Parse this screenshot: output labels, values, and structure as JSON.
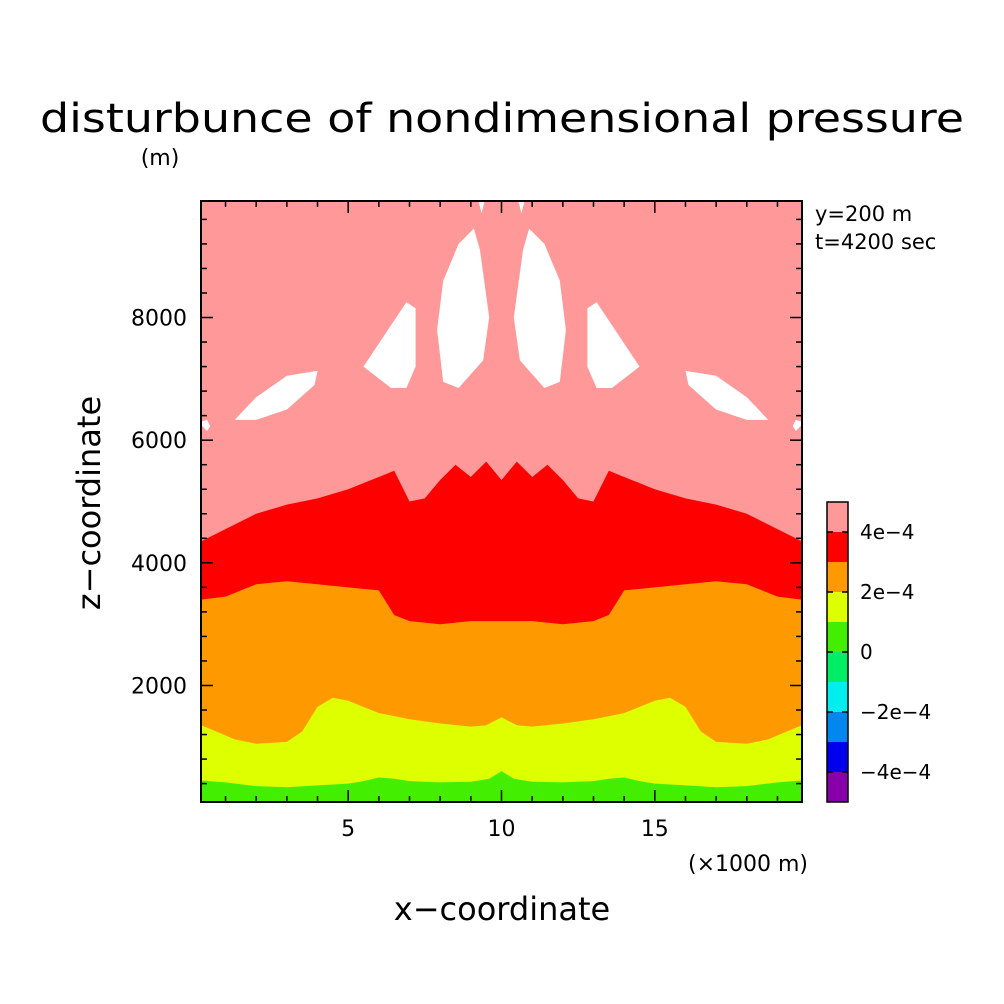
{
  "chart_data": {
    "type": "contour",
    "title": "disturbunce of nondimensional pressure",
    "ylabel": "z−coordinate",
    "yunit": "(m)",
    "xlabel": "x−coordinate",
    "xunit": "(×1000 m)",
    "info": [
      "y=200 m",
      "t=4200 sec"
    ],
    "xlim": [
      0.2,
      19.8
    ],
    "ylim": [
      100,
      9900
    ],
    "xticks": [
      5,
      10,
      15
    ],
    "yticks": [
      2000,
      4000,
      6000,
      8000
    ],
    "colorbar": {
      "tick_labels": [
        "4e−4",
        "2e−4",
        "0",
        "−2e−4",
        "−4e−4"
      ],
      "levels_top_to_bottom": [
        {
          "color": "#ff9999"
        },
        {
          "color": "#ff0000"
        },
        {
          "color": "#ff9900"
        },
        {
          "color": "#ddff00"
        },
        {
          "color": "#44ee00"
        },
        {
          "color": "#00ee66"
        },
        {
          "color": "#00eeee"
        },
        {
          "color": "#0088ee"
        },
        {
          "color": "#0000ee"
        },
        {
          "color": "#8800aa"
        }
      ]
    },
    "boundaries": {
      "green_top": [
        [
          0.2,
          450
        ],
        [
          1.0,
          420
        ],
        [
          2.0,
          360
        ],
        [
          3.0,
          340
        ],
        [
          4.0,
          370
        ],
        [
          5.0,
          400
        ],
        [
          5.5,
          440
        ],
        [
          6.0,
          500
        ],
        [
          6.5,
          480
        ],
        [
          7.0,
          440
        ],
        [
          8.0,
          420
        ],
        [
          9.0,
          430
        ],
        [
          9.6,
          480
        ],
        [
          10.0,
          600
        ],
        [
          10.4,
          480
        ],
        [
          11.0,
          430
        ],
        [
          12.0,
          420
        ],
        [
          13.0,
          440
        ],
        [
          13.5,
          480
        ],
        [
          14.0,
          500
        ],
        [
          14.5,
          440
        ],
        [
          15.0,
          400
        ],
        [
          16.0,
          370
        ],
        [
          17.0,
          340
        ],
        [
          18.0,
          360
        ],
        [
          19.0,
          420
        ],
        [
          19.8,
          450
        ]
      ],
      "yellow_top": [
        [
          0.2,
          1350
        ],
        [
          0.7,
          1250
        ],
        [
          1.3,
          1120
        ],
        [
          2.0,
          1050
        ],
        [
          3.0,
          1080
        ],
        [
          3.5,
          1250
        ],
        [
          4.0,
          1650
        ],
        [
          4.5,
          1800
        ],
        [
          5.0,
          1750
        ],
        [
          6.0,
          1550
        ],
        [
          7.0,
          1450
        ],
        [
          8.0,
          1380
        ],
        [
          9.0,
          1330
        ],
        [
          9.5,
          1350
        ],
        [
          10.0,
          1480
        ],
        [
          10.5,
          1350
        ],
        [
          11.0,
          1330
        ],
        [
          12.0,
          1380
        ],
        [
          13.0,
          1450
        ],
        [
          14.0,
          1550
        ],
        [
          15.0,
          1750
        ],
        [
          15.5,
          1800
        ],
        [
          16.0,
          1650
        ],
        [
          16.5,
          1250
        ],
        [
          17.0,
          1080
        ],
        [
          18.0,
          1050
        ],
        [
          18.7,
          1120
        ],
        [
          19.3,
          1250
        ],
        [
          19.8,
          1350
        ]
      ],
      "orange_top": [
        [
          0.2,
          3400
        ],
        [
          1.0,
          3450
        ],
        [
          2.0,
          3650
        ],
        [
          3.0,
          3700
        ],
        [
          4.0,
          3650
        ],
        [
          5.0,
          3600
        ],
        [
          6.0,
          3550
        ],
        [
          6.5,
          3150
        ],
        [
          7.0,
          3050
        ],
        [
          8.0,
          3000
        ],
        [
          9.0,
          3050
        ],
        [
          10.0,
          3050
        ],
        [
          11.0,
          3050
        ],
        [
          12.0,
          3000
        ],
        [
          13.0,
          3050
        ],
        [
          13.5,
          3150
        ],
        [
          14.0,
          3550
        ],
        [
          15.0,
          3600
        ],
        [
          16.0,
          3650
        ],
        [
          17.0,
          3700
        ],
        [
          18.0,
          3650
        ],
        [
          19.0,
          3450
        ],
        [
          19.8,
          3400
        ]
      ],
      "red_top": [
        [
          0.2,
          4350
        ],
        [
          1.0,
          4550
        ],
        [
          2.0,
          4800
        ],
        [
          3.0,
          4950
        ],
        [
          4.0,
          5050
        ],
        [
          5.0,
          5200
        ],
        [
          6.0,
          5400
        ],
        [
          6.5,
          5500
        ],
        [
          7.0,
          5000
        ],
        [
          7.5,
          5050
        ],
        [
          8.0,
          5350
        ],
        [
          8.5,
          5600
        ],
        [
          9.0,
          5400
        ],
        [
          9.5,
          5650
        ],
        [
          10.0,
          5350
        ],
        [
          10.5,
          5650
        ],
        [
          11.0,
          5400
        ],
        [
          11.5,
          5600
        ],
        [
          12.0,
          5350
        ],
        [
          12.5,
          5050
        ],
        [
          13.0,
          5000
        ],
        [
          13.5,
          5500
        ],
        [
          14.0,
          5400
        ],
        [
          15.0,
          5200
        ],
        [
          16.0,
          5050
        ],
        [
          17.0,
          4950
        ],
        [
          18.0,
          4800
        ],
        [
          19.0,
          4550
        ],
        [
          19.8,
          4350
        ]
      ],
      "white_patches": [
        [
          [
            1.3,
            6330
          ],
          [
            2.0,
            6700
          ],
          [
            3.0,
            7050
          ],
          [
            4.0,
            7130
          ],
          [
            3.9,
            6900
          ],
          [
            3.0,
            6500
          ],
          [
            2.0,
            6330
          ]
        ],
        [
          [
            18.7,
            6330
          ],
          [
            18.0,
            6700
          ],
          [
            17.0,
            7050
          ],
          [
            16.0,
            7130
          ],
          [
            16.1,
            6900
          ],
          [
            17.0,
            6500
          ],
          [
            18.0,
            6330
          ]
        ],
        [
          [
            5.5,
            7200
          ],
          [
            6.3,
            7800
          ],
          [
            6.9,
            8250
          ],
          [
            7.2,
            8150
          ],
          [
            7.2,
            7200
          ],
          [
            6.9,
            6850
          ],
          [
            6.4,
            6850
          ]
        ],
        [
          [
            14.5,
            7200
          ],
          [
            13.7,
            7800
          ],
          [
            13.1,
            8250
          ],
          [
            12.8,
            8150
          ],
          [
            12.8,
            7200
          ],
          [
            13.1,
            6850
          ],
          [
            13.6,
            6850
          ]
        ],
        [
          [
            7.9,
            7800
          ],
          [
            8.1,
            8600
          ],
          [
            8.6,
            9200
          ],
          [
            9.1,
            9450
          ],
          [
            9.3,
            9100
          ],
          [
            9.6,
            8000
          ],
          [
            9.4,
            7300
          ],
          [
            8.6,
            6850
          ],
          [
            8.1,
            6950
          ]
        ],
        [
          [
            12.1,
            7800
          ],
          [
            11.9,
            8600
          ],
          [
            11.4,
            9200
          ],
          [
            10.9,
            9450
          ],
          [
            10.7,
            9100
          ],
          [
            10.4,
            8000
          ],
          [
            10.6,
            7300
          ],
          [
            11.4,
            6850
          ],
          [
            11.9,
            6950
          ]
        ],
        [
          [
            0.2,
            6250
          ],
          [
            0.4,
            6150
          ],
          [
            0.5,
            6230
          ],
          [
            0.4,
            6330
          ],
          [
            0.2,
            6300
          ]
        ],
        [
          [
            19.8,
            6250
          ],
          [
            19.6,
            6150
          ],
          [
            19.5,
            6230
          ],
          [
            19.6,
            6330
          ],
          [
            19.8,
            6300
          ]
        ],
        [
          [
            9.25,
            9900
          ],
          [
            9.35,
            9700
          ],
          [
            9.45,
            9900
          ]
        ],
        [
          [
            10.55,
            9900
          ],
          [
            10.65,
            9700
          ],
          [
            10.75,
            9900
          ]
        ]
      ]
    }
  }
}
